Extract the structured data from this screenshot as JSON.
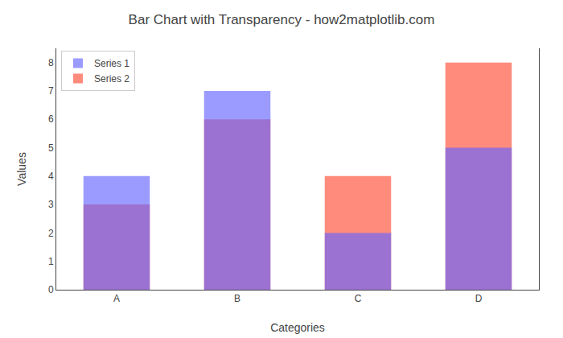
{
  "chart_data": {
    "type": "bar",
    "title": "Bar Chart with Transparency - how2matplotlib.com",
    "xlabel": "Categories",
    "ylabel": "Values",
    "categories": [
      "A",
      "B",
      "C",
      "D"
    ],
    "series": [
      {
        "name": "Series 1",
        "color": "#6666FF",
        "values": [
          4,
          7,
          2,
          5
        ]
      },
      {
        "name": "Series 2",
        "color": "#FF7766",
        "values": [
          3,
          6,
          4,
          8
        ]
      }
    ],
    "ylim": [
      0,
      8.5
    ],
    "yticks": [
      0,
      1,
      2,
      3,
      4,
      5,
      6,
      7,
      8
    ],
    "grid": false,
    "legend": "upper left"
  }
}
